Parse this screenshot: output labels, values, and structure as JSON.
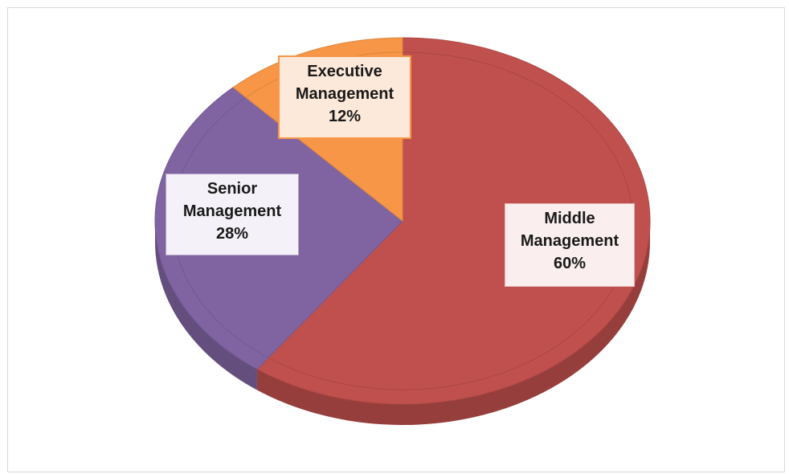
{
  "chart_data": {
    "type": "pie",
    "title": "",
    "slices": [
      {
        "name": "Middle Management",
        "label_lines": [
          "Middle",
          "Management",
          "60%"
        ],
        "value": 60,
        "color": "#c0504d"
      },
      {
        "name": "Senior Management",
        "label_lines": [
          "Senior",
          "Management",
          "28%"
        ],
        "value": 28,
        "color": "#8064a2"
      },
      {
        "name": "Executive Management",
        "label_lines": [
          "Executive",
          "Management",
          "12%"
        ],
        "value": 12,
        "color": "#f79646"
      }
    ],
    "legend": "none",
    "style": "3d"
  }
}
